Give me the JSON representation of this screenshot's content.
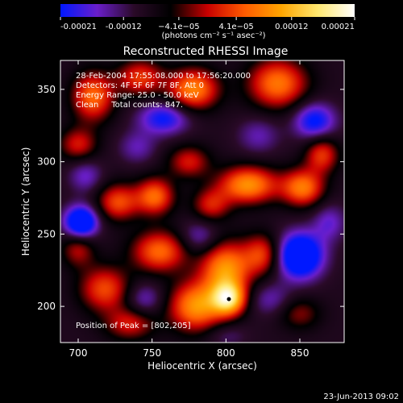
{
  "chart_data": {
    "type": "heatmap",
    "title": "Reconstructed RHESSI Image",
    "xlabel": "Heliocentric X (arcsec)",
    "ylabel": "Heliocentric Y (arcsec)",
    "xlim": [
      688,
      880
    ],
    "ylim": [
      175,
      370
    ],
    "x_ticks": [
      700,
      750,
      800,
      850
    ],
    "y_ticks": [
      200,
      250,
      300,
      350
    ],
    "colorbar": {
      "range": [
        -0.00021,
        0.00021
      ],
      "tick_values": [
        -0.00021,
        -0.00012,
        -4.1e-05,
        4.1e-05,
        0.00012,
        0.00021
      ],
      "tick_labels": [
        "-0.00021",
        "-0.00012",
        "−4.1e−05",
        "4.1e−05",
        "0.00012",
        "0.00021"
      ],
      "unit_label": "(photons cm⁻² s⁻¹ asec⁻²)",
      "colors": [
        "#0018ff",
        "#6a1ecb",
        "#2a0a28",
        "#000000",
        "#c80000",
        "#ff5a00",
        "#ffa500",
        "#ffe870",
        "#ffffff"
      ]
    },
    "annotations": [
      "28-Feb-2004 17:55:08.000 to 17:56:20.000",
      "Detectors: 4F 5F 6F 7F 8F, Att 0",
      "Energy Range: 25.0 - 50.0 keV",
      "Clean     Total counts: 847."
    ],
    "peak_label": "Position of Peak = [802,205]",
    "peak": [
      802,
      205
    ],
    "blobs": [
      {
        "x": 710,
        "y": 345,
        "amp": 0.00015,
        "sx": 10,
        "sy": 12
      },
      {
        "x": 742,
        "y": 358,
        "amp": 0.00012,
        "sx": 11,
        "sy": 9
      },
      {
        "x": 778,
        "y": 350,
        "amp": 0.00017,
        "sx": 12,
        "sy": 10
      },
      {
        "x": 835,
        "y": 354,
        "amp": 0.00016,
        "sx": 14,
        "sy": 12
      },
      {
        "x": 700,
        "y": 312,
        "amp": 0.0001,
        "sx": 9,
        "sy": 8
      },
      {
        "x": 775,
        "y": 300,
        "amp": 0.0001,
        "sx": 10,
        "sy": 8
      },
      {
        "x": 815,
        "y": 284,
        "amp": 0.00018,
        "sx": 14,
        "sy": 9
      },
      {
        "x": 852,
        "y": 282,
        "amp": 0.00016,
        "sx": 10,
        "sy": 9
      },
      {
        "x": 865,
        "y": 305,
        "amp": 0.00012,
        "sx": 8,
        "sy": 9
      },
      {
        "x": 727,
        "y": 272,
        "amp": 0.00013,
        "sx": 10,
        "sy": 9
      },
      {
        "x": 752,
        "y": 276,
        "amp": 0.00015,
        "sx": 9,
        "sy": 9
      },
      {
        "x": 790,
        "y": 270,
        "amp": 0.0001,
        "sx": 9,
        "sy": 8
      },
      {
        "x": 755,
        "y": 238,
        "amp": 0.00015,
        "sx": 13,
        "sy": 10
      },
      {
        "x": 800,
        "y": 226,
        "amp": 0.00018,
        "sx": 12,
        "sy": 13
      },
      {
        "x": 825,
        "y": 236,
        "amp": 0.00012,
        "sx": 9,
        "sy": 10
      },
      {
        "x": 718,
        "y": 212,
        "amp": 0.00013,
        "sx": 12,
        "sy": 11
      },
      {
        "x": 780,
        "y": 200,
        "amp": 0.00018,
        "sx": 13,
        "sy": 12
      },
      {
        "x": 802,
        "y": 205,
        "amp": 0.00021,
        "sx": 8,
        "sy": 8
      },
      {
        "x": 700,
        "y": 240,
        "amp": 9e-05,
        "sx": 8,
        "sy": 9
      },
      {
        "x": 735,
        "y": 188,
        "amp": 0.0001,
        "sx": 12,
        "sy": 8
      },
      {
        "x": 850,
        "y": 195,
        "amp": 7e-05,
        "sx": 10,
        "sy": 8
      },
      {
        "x": 702,
        "y": 258,
        "amp": -0.0002,
        "sx": 8,
        "sy": 8
      },
      {
        "x": 850,
        "y": 235,
        "amp": -0.00021,
        "sx": 11,
        "sy": 11
      },
      {
        "x": 758,
        "y": 330,
        "amp": -0.00012,
        "sx": 12,
        "sy": 8
      },
      {
        "x": 860,
        "y": 328,
        "amp": -0.00013,
        "sx": 10,
        "sy": 9
      },
      {
        "x": 822,
        "y": 318,
        "amp": -6e-05,
        "sx": 10,
        "sy": 9
      },
      {
        "x": 782,
        "y": 248,
        "amp": -7e-05,
        "sx": 9,
        "sy": 8
      },
      {
        "x": 745,
        "y": 205,
        "amp": -7e-05,
        "sx": 9,
        "sy": 8
      },
      {
        "x": 830,
        "y": 205,
        "amp": -6e-05,
        "sx": 10,
        "sy": 8
      },
      {
        "x": 705,
        "y": 290,
        "amp": -7e-05,
        "sx": 8,
        "sy": 8
      },
      {
        "x": 740,
        "y": 310,
        "amp": -6e-05,
        "sx": 9,
        "sy": 8
      },
      {
        "x": 870,
        "y": 258,
        "amp": -7e-05,
        "sx": 8,
        "sy": 9
      },
      {
        "x": 800,
        "y": 180,
        "amp": -4e-05,
        "sx": 10,
        "sy": 6
      }
    ]
  },
  "footer": {
    "date": "23-Jun-2013 09:02"
  }
}
